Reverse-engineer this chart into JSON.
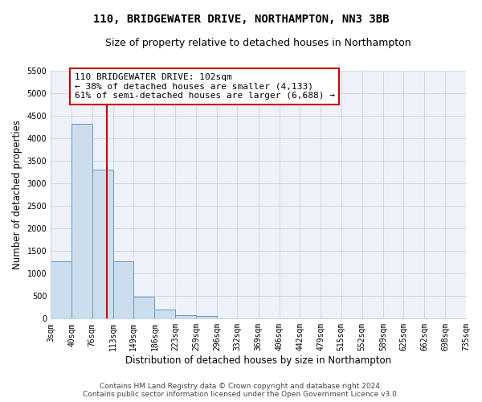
{
  "title": "110, BRIDGEWATER DRIVE, NORTHAMPTON, NN3 3BB",
  "subtitle": "Size of property relative to detached houses in Northampton",
  "xlabel": "Distribution of detached houses by size in Northampton",
  "ylabel": "Number of detached properties",
  "footer_line1": "Contains HM Land Registry data © Crown copyright and database right 2024.",
  "footer_line2": "Contains public sector information licensed under the Open Government Licence v3.0.",
  "annotation_line1": "110 BRIDGEWATER DRIVE: 102sqm",
  "annotation_line2": "← 38% of detached houses are smaller (4,133)",
  "annotation_line3": "61% of semi-detached houses are larger (6,688) →",
  "property_size": 102,
  "bin_starts": [
    3,
    40,
    76,
    113,
    149,
    186,
    223,
    259,
    296,
    332,
    369,
    406,
    442,
    479,
    515,
    552,
    589,
    625,
    662,
    698
  ],
  "bin_labels": [
    "3sqm",
    "40sqm",
    "76sqm",
    "113sqm",
    "149sqm",
    "186sqm",
    "223sqm",
    "259sqm",
    "296sqm",
    "332sqm",
    "369sqm",
    "406sqm",
    "442sqm",
    "479sqm",
    "515sqm",
    "552sqm",
    "589sqm",
    "625sqm",
    "662sqm",
    "698sqm",
    "735sqm"
  ],
  "bar_values": [
    1270,
    4330,
    3300,
    1280,
    490,
    205,
    80,
    55,
    0,
    0,
    0,
    0,
    0,
    0,
    0,
    0,
    0,
    0,
    0,
    0
  ],
  "bar_color": "#ccdded",
  "bar_edge_color": "#6699bb",
  "vline_color": "#cc0000",
  "ylim": [
    0,
    5500
  ],
  "yticks": [
    0,
    500,
    1000,
    1500,
    2000,
    2500,
    3000,
    3500,
    4000,
    4500,
    5000,
    5500
  ],
  "xlim_min": 3,
  "xlim_max": 735,
  "background_color": "#eef2f8",
  "grid_color": "#c8d4e0",
  "annotation_box_color": "#ffffff",
  "annotation_box_edge": "#cc0000",
  "title_fontsize": 10,
  "subtitle_fontsize": 9,
  "axis_label_fontsize": 8.5,
  "tick_fontsize": 7,
  "annotation_fontsize": 8,
  "footer_fontsize": 6.5
}
